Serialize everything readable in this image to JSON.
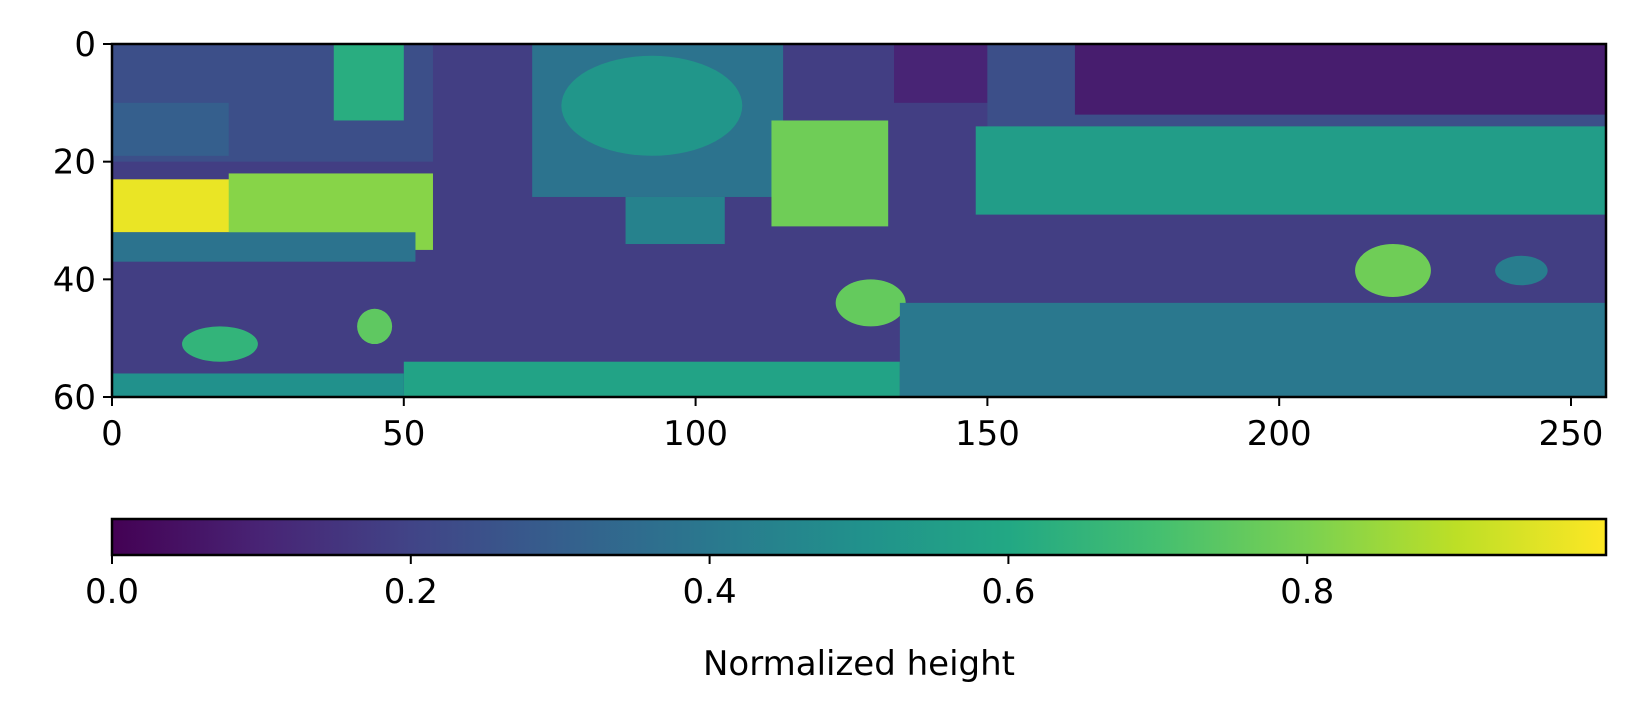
{
  "chart_data": {
    "type": "heatmap",
    "colormap": "viridis",
    "x_range": [
      0,
      256
    ],
    "y_range": [
      0,
      60
    ],
    "y_inverted": true,
    "xticks": [
      0,
      50,
      100,
      150,
      200,
      250
    ],
    "yticks": [
      0,
      20,
      40,
      60
    ],
    "value_range": [
      0,
      1
    ],
    "colorbar": {
      "orientation": "horizontal",
      "placement": "bottom",
      "ticks": [
        "0.0",
        "0.2",
        "0.4",
        "0.6",
        "0.8"
      ],
      "tick_values": [
        0,
        0.2,
        0.4,
        0.6,
        0.8
      ],
      "label": "Normalized height"
    },
    "grid": false,
    "base_value": 0.18,
    "regions": [
      {
        "name": "top-left-block",
        "x": [
          0,
          55
        ],
        "y": [
          0,
          20
        ],
        "value": 0.24
      },
      {
        "name": "left-edge-upper",
        "x": [
          0,
          20
        ],
        "y": [
          10,
          19
        ],
        "value": 0.3
      },
      {
        "name": "green-column-top",
        "x": [
          38,
          50
        ],
        "y": [
          0,
          13
        ],
        "value": 0.62
      },
      {
        "name": "yellow-stripe-left",
        "x": [
          0,
          35
        ],
        "y": [
          23,
          32
        ],
        "value": 0.97
      },
      {
        "name": "yellow-green-stripe",
        "x": [
          20,
          55
        ],
        "y": [
          22,
          35
        ],
        "value": 0.82
      },
      {
        "name": "teal-under-stripe",
        "x": [
          0,
          52
        ],
        "y": [
          32,
          37
        ],
        "value": 0.38
      },
      {
        "name": "bright-dot-a",
        "x": [
          42,
          48
        ],
        "y": [
          45,
          51
        ],
        "value": 0.75
      },
      {
        "name": "green-dots-left",
        "x": [
          12,
          25
        ],
        "y": [
          48,
          54
        ],
        "value": 0.65
      },
      {
        "name": "green-bottom-strip",
        "x": [
          50,
          135
        ],
        "y": [
          54,
          60
        ],
        "value": 0.58
      },
      {
        "name": "teal-base-left",
        "x": [
          0,
          50
        ],
        "y": [
          56,
          60
        ],
        "value": 0.5
      },
      {
        "name": "mid-top-block",
        "x": [
          72,
          115
        ],
        "y": [
          0,
          26
        ],
        "value": 0.38
      },
      {
        "name": "circle-tank",
        "x": [
          77,
          108
        ],
        "y": [
          2,
          19
        ],
        "value": 0.52
      },
      {
        "name": "mid-small-block",
        "x": [
          88,
          105
        ],
        "y": [
          26,
          34
        ],
        "value": 0.44
      },
      {
        "name": "green-block-center",
        "x": [
          113,
          133
        ],
        "y": [
          13,
          31
        ],
        "value": 0.78
      },
      {
        "name": "dark-column-top",
        "x": [
          134,
          150
        ],
        "y": [
          0,
          10
        ],
        "value": 0.1
      },
      {
        "name": "right-top-block",
        "x": [
          150,
          256
        ],
        "y": [
          0,
          21
        ],
        "value": 0.24
      },
      {
        "name": "dark-roof-area",
        "x": [
          165,
          256
        ],
        "y": [
          0,
          12
        ],
        "value": 0.08
      },
      {
        "name": "green-band-right",
        "x": [
          148,
          256
        ],
        "y": [
          14,
          29
        ],
        "value": 0.55
      },
      {
        "name": "bright-dot-b",
        "x": [
          124,
          136
        ],
        "y": [
          40,
          48
        ],
        "value": 0.76
      },
      {
        "name": "bright-dot-c",
        "x": [
          213,
          226
        ],
        "y": [
          34,
          43
        ],
        "value": 0.78
      },
      {
        "name": "small-dot-right",
        "x": [
          237,
          246
        ],
        "y": [
          36,
          41
        ],
        "value": 0.42
      },
      {
        "name": "teal-bottom-right",
        "x": [
          135,
          256
        ],
        "y": [
          44,
          60
        ],
        "value": 0.4
      }
    ]
  }
}
